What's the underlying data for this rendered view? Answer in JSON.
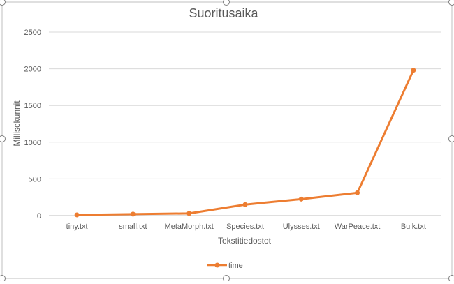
{
  "chart_data": {
    "type": "line",
    "title": "Suoritusaika",
    "xlabel": "Tekstitiedostot",
    "ylabel": "Millisekunnit",
    "categories": [
      "tiny.txt",
      "small.txt",
      "MetaMorph.txt",
      "Species.txt",
      "Ulysses.txt",
      "WarPeace.txt",
      "Bulk.txt"
    ],
    "series": [
      {
        "name": "time",
        "values": [
          10,
          20,
          30,
          150,
          225,
          310,
          1980
        ]
      }
    ],
    "ylim": [
      0,
      2500
    ],
    "yticks": [
      "0",
      "500",
      "1000",
      "1500",
      "2000",
      "2500"
    ],
    "grid": true,
    "legend": "bottom",
    "colors": {
      "series": "#ED7D31",
      "grid": "#D9D9D9",
      "text": "#595959",
      "handles": "#808080"
    }
  }
}
